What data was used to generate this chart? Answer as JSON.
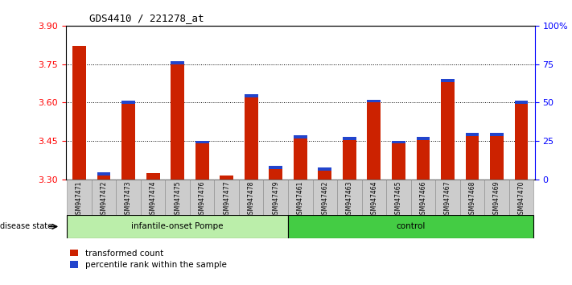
{
  "title": "GDS4410 / 221278_at",
  "samples": [
    "GSM947471",
    "GSM947472",
    "GSM947473",
    "GSM947474",
    "GSM947475",
    "GSM947476",
    "GSM947477",
    "GSM947478",
    "GSM947479",
    "GSM947461",
    "GSM947462",
    "GSM947463",
    "GSM947464",
    "GSM947465",
    "GSM947466",
    "GSM947467",
    "GSM947468",
    "GSM947469",
    "GSM947470"
  ],
  "red_values": [
    3.82,
    3.315,
    3.595,
    3.325,
    3.75,
    3.44,
    3.315,
    3.62,
    3.34,
    3.46,
    3.335,
    3.455,
    3.6,
    3.44,
    3.455,
    3.68,
    3.47,
    3.47,
    3.595
  ],
  "blue_pct": [
    0,
    15,
    20,
    0,
    20,
    15,
    0,
    20,
    15,
    15,
    10,
    20,
    20,
    15,
    20,
    20,
    15,
    15,
    15
  ],
  "ymin": 3.3,
  "ymax": 3.9,
  "yticks": [
    3.3,
    3.45,
    3.6,
    3.75,
    3.9
  ],
  "right_yticks_pct": [
    0,
    25,
    50,
    75,
    100
  ],
  "right_ytick_labels": [
    "0",
    "25",
    "50",
    "75",
    "100%"
  ],
  "group1_label": "infantile-onset Pompe",
  "group2_label": "control",
  "group1_count": 9,
  "group2_count": 10,
  "disease_state_label": "disease state",
  "legend_red": "transformed count",
  "legend_blue": "percentile rank within the sample",
  "bar_width": 0.55,
  "bar_color_red": "#cc2200",
  "bar_color_blue": "#2244cc",
  "group1_bg": "#bbeeaa",
  "group2_bg": "#44cc44",
  "tick_bg": "#cccccc",
  "bar_base": 3.3
}
